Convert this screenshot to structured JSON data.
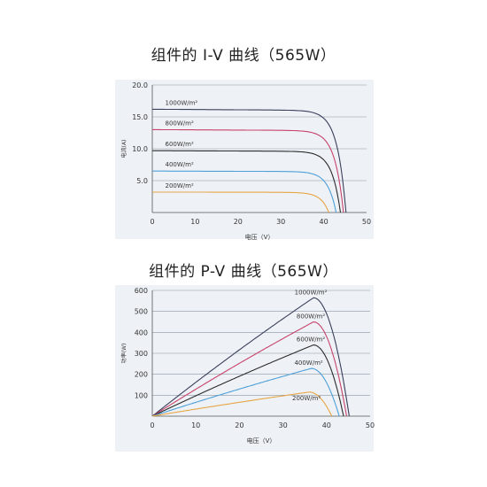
{
  "chart_data": [
    {
      "type": "line",
      "title": "组件的 I-V 曲线（565W）",
      "xlabel": "电压（V）",
      "ylabel": "电流(A)",
      "xlim": [
        0,
        50
      ],
      "ylim": [
        0,
        20
      ],
      "xticks": [
        "0",
        "10",
        "20",
        "30",
        "40",
        "50"
      ],
      "yticks": [
        "5.0",
        "10.0",
        "15.0",
        "20.0"
      ],
      "grid": true,
      "series": [
        {
          "name": "1000W/m²",
          "color": "#3a3f5c",
          "isc": 16.2,
          "voc": 45.2,
          "knee": 0.82
        },
        {
          "name": "800W/m²",
          "color": "#c8426a",
          "isc": 13.0,
          "voc": 44.6,
          "knee": 0.82
        },
        {
          "name": "600W/m²",
          "color": "#2b2b2b",
          "isc": 9.7,
          "voc": 43.9,
          "knee": 0.82
        },
        {
          "name": "400W/m²",
          "color": "#4e9fd8",
          "isc": 6.5,
          "voc": 42.9,
          "knee": 0.82
        },
        {
          "name": "200W/m²",
          "color": "#e8a545",
          "isc": 3.2,
          "voc": 41.2,
          "knee": 0.82
        }
      ]
    },
    {
      "type": "line",
      "title": "组件的 P-V 曲线（565W）",
      "xlabel": "电压（V）",
      "ylabel": "功率(W)",
      "xlim": [
        0,
        50
      ],
      "ylim": [
        0,
        600
      ],
      "xticks": [
        "0",
        "10",
        "20",
        "30",
        "40",
        "50"
      ],
      "yticks": [
        "100",
        "200",
        "300",
        "400",
        "500",
        "600"
      ],
      "grid": true,
      "series": [
        {
          "name": "1000W/m²",
          "color": "#3a3f5c",
          "pmax": 565,
          "vmp": 37,
          "voc": 45.2
        },
        {
          "name": "800W/m²",
          "color": "#c8426a",
          "pmax": 450,
          "vmp": 37,
          "voc": 44.6
        },
        {
          "name": "600W/m²",
          "color": "#2b2b2b",
          "pmax": 340,
          "vmp": 37,
          "voc": 43.9
        },
        {
          "name": "400W/m²",
          "color": "#4e9fd8",
          "pmax": 228,
          "vmp": 36.5,
          "voc": 42.9
        },
        {
          "name": "200W/m²",
          "color": "#e8a545",
          "pmax": 115,
          "vmp": 36,
          "voc": 41.2
        }
      ]
    }
  ]
}
